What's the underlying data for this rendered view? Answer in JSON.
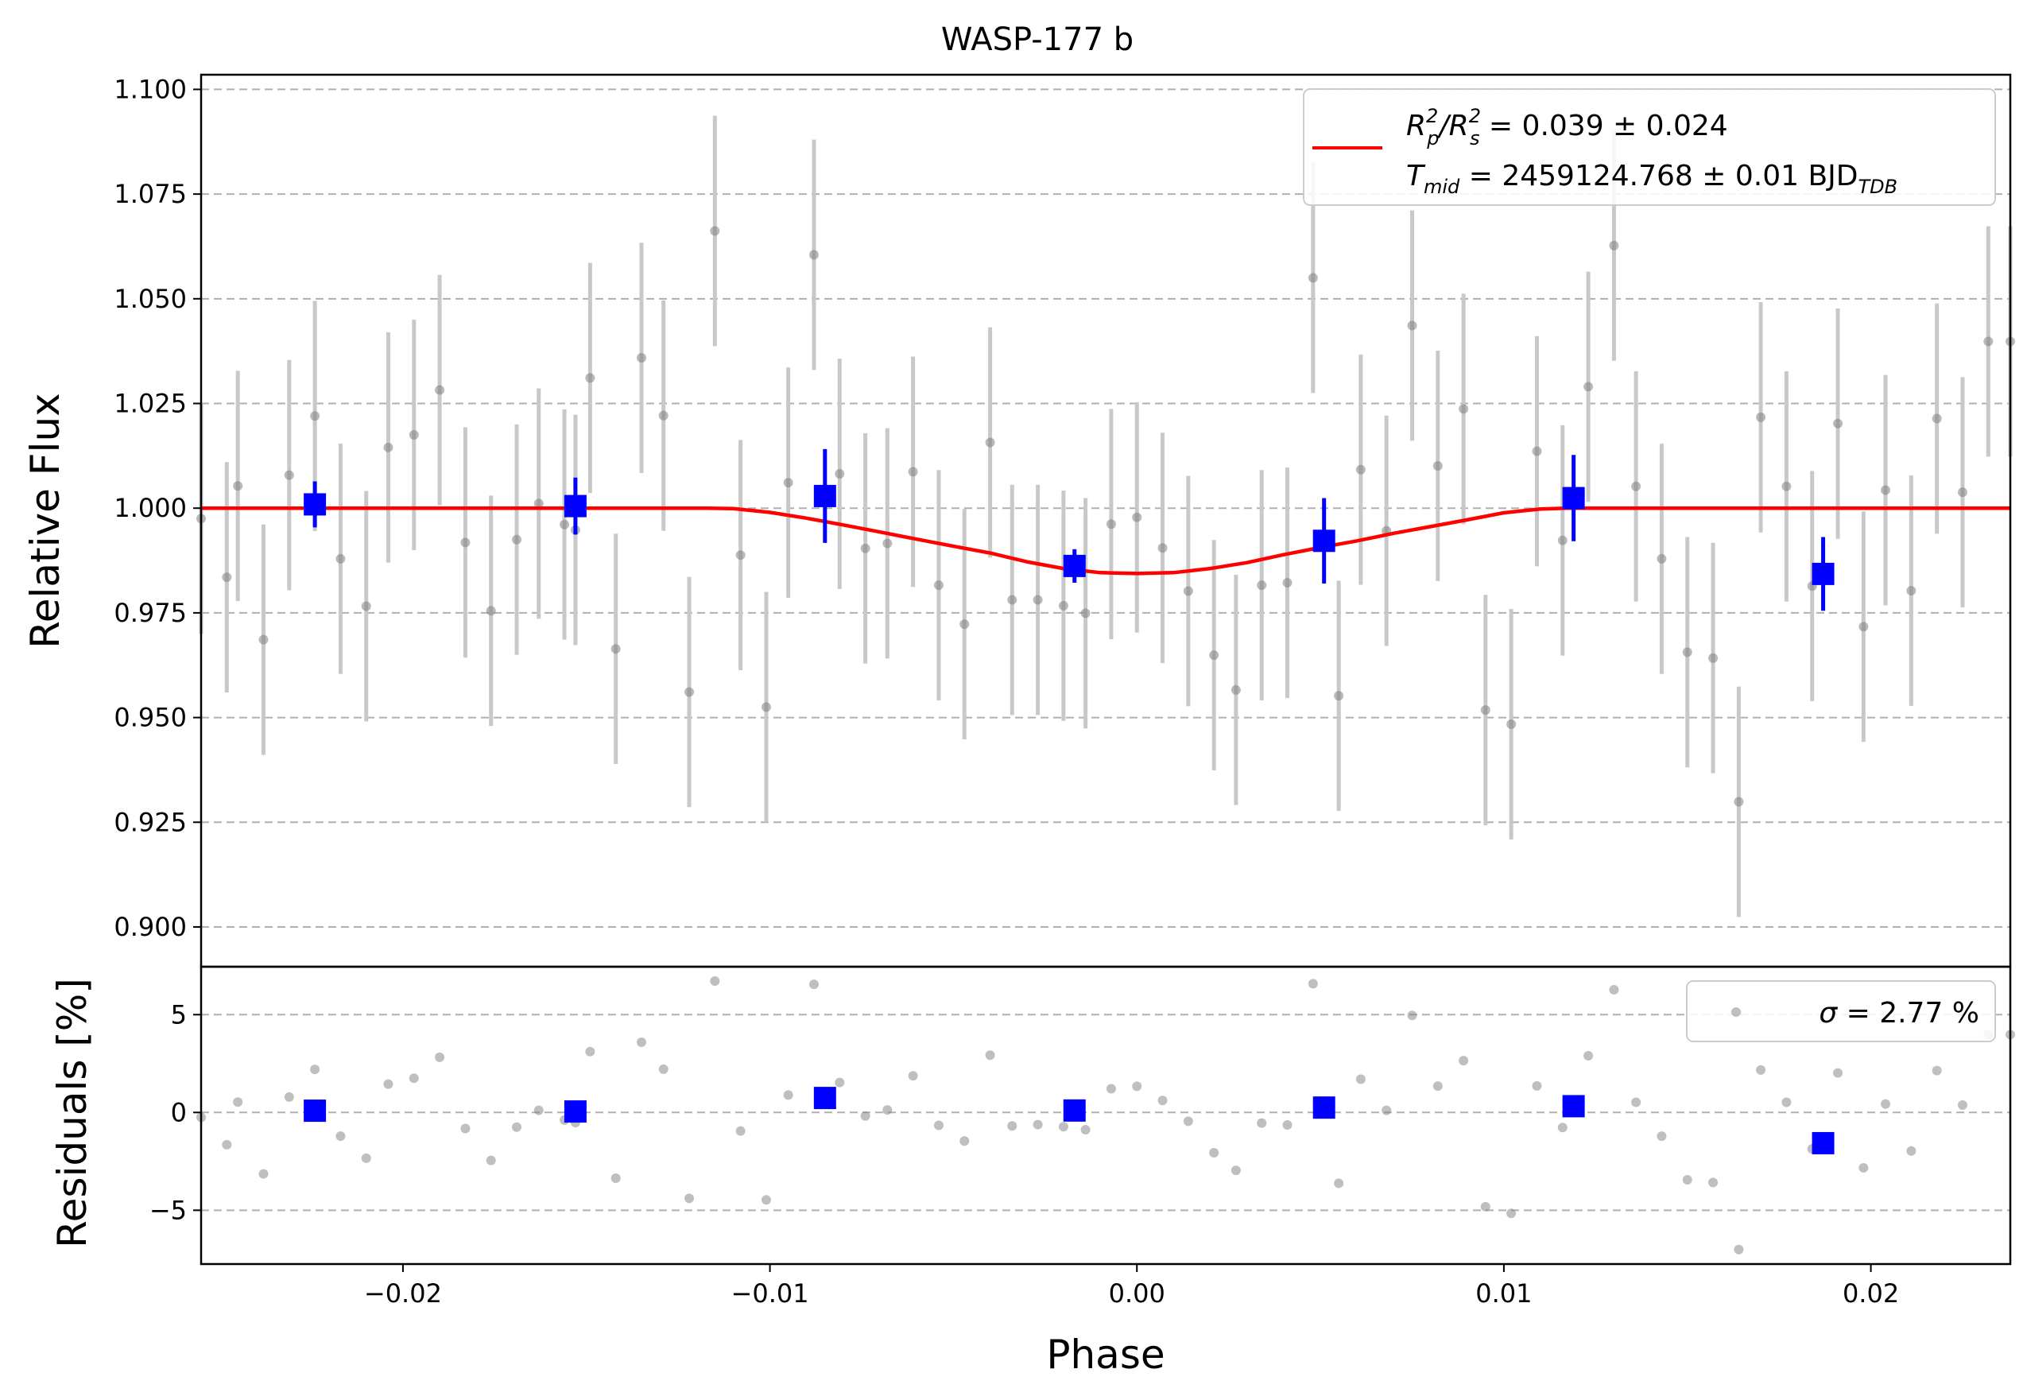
{
  "chart_data": [
    {
      "type": "scatter",
      "title": "WASP-177 b",
      "ylabel": "Relative Flux",
      "xlim": [
        -0.0255,
        0.0238
      ],
      "ylim": [
        0.8905,
        1.1035
      ],
      "yticks": [
        0.9,
        0.925,
        0.95,
        0.975,
        1.0,
        1.025,
        1.05,
        1.075,
        1.1
      ],
      "ytick_labels": [
        "0.900",
        "0.925",
        "0.950",
        "0.975",
        "1.000",
        "1.025",
        "1.050",
        "1.075",
        "1.100"
      ],
      "grid": "horizontal dashed",
      "legend_position": "top-right",
      "legend": {
        "line_label_parts": {
          "r1": "R",
          "r1_sup": "2",
          "r1_sub": "p",
          "slash": "/R",
          "r2_sup": "2",
          "r2_sub": "s",
          "value": " = 0.039 ± 0.024"
        },
        "tmid_label_parts": {
          "t": "T",
          "t_sub": "mid",
          "value": " = 2459124.768 ± 0.01 BJD",
          "unit_sub": "TDB"
        }
      },
      "colors": {
        "model": "#ff0000",
        "binned": "#0000ff",
        "raw": "#808080",
        "raw_err": "#c8c8c8",
        "grid": "#b0b0b0"
      },
      "series": [
        {
          "name": "raw",
          "x": [
            -0.0255,
            -0.0248,
            -0.0245,
            -0.0238,
            -0.0231,
            -0.0224,
            -0.0217,
            -0.021,
            -0.0204,
            -0.0197,
            -0.019,
            -0.0183,
            -0.0176,
            -0.0169,
            -0.0163,
            -0.0156,
            -0.0153,
            -0.0149,
            -0.0142,
            -0.0135,
            -0.0129,
            -0.0122,
            -0.0115,
            -0.0108,
            -0.0101,
            -0.0095,
            -0.0088,
            -0.0081,
            -0.0074,
            -0.0068,
            -0.0061,
            -0.0054,
            -0.0047,
            -0.004,
            -0.0034,
            -0.0027,
            -0.002,
            -0.0014,
            -0.0007,
            0.0,
            0.0007,
            0.0014,
            0.0021,
            0.0027,
            0.0034,
            0.0041,
            0.0048,
            0.0055,
            0.0061,
            0.0068,
            0.0075,
            0.0082,
            0.0089,
            0.0095,
            0.0102,
            0.0109,
            0.0116,
            0.0123,
            0.013,
            0.0136,
            0.0143,
            0.015,
            0.0157,
            0.0164,
            0.017,
            0.0177,
            0.0184,
            0.0191,
            0.0198,
            0.0204,
            0.0211,
            0.0218,
            0.0225,
            0.0232,
            0.0238
          ],
          "y": [
            0.9975,
            0.9835,
            1.0053,
            0.9686,
            1.0079,
            1.022,
            0.9879,
            0.9766,
            1.0145,
            1.0175,
            1.0282,
            0.9918,
            0.9755,
            0.9925,
            1.0011,
            0.9961,
            0.9948,
            1.0311,
            0.9664,
            1.0359,
            1.0221,
            0.9561,
            1.0662,
            0.9888,
            0.9525,
            1.0061,
            1.0605,
            1.0082,
            0.9904,
            0.9916,
            1.0087,
            0.9816,
            0.9723,
            1.0157,
            0.9781,
            0.9781,
            0.9767,
            0.9749,
            0.9962,
            0.9978,
            0.9905,
            0.9802,
            0.9649,
            0.9566,
            0.9816,
            0.9822,
            1.055,
            0.9552,
            1.0092,
            0.9946,
            1.0436,
            1.0101,
            1.0237,
            0.9518,
            0.9484,
            1.0136,
            0.9923,
            1.029,
            1.0627,
            1.0052,
            0.9879,
            0.9656,
            0.9642,
            0.9299,
            1.0217,
            1.0052,
            0.9814,
            1.0202,
            0.9717,
            1.0043,
            0.9803,
            1.0214,
            1.0038,
            1.0398,
            1.0398
          ],
          "err": [
            0.0275,
            0.0275,
            0.0275,
            0.0275,
            0.0275,
            0.0275,
            0.0275,
            0.0275,
            0.0275,
            0.0275,
            0.0275,
            0.0275,
            0.0275,
            0.0275,
            0.0275,
            0.0275,
            0.0275,
            0.0275,
            0.0275,
            0.0275,
            0.0275,
            0.0275,
            0.0275,
            0.0275,
            0.0275,
            0.0275,
            0.0275,
            0.0275,
            0.0275,
            0.0275,
            0.0275,
            0.0275,
            0.0275,
            0.0275,
            0.0275,
            0.0275,
            0.0275,
            0.0275,
            0.0275,
            0.0275,
            0.0275,
            0.0275,
            0.0275,
            0.0275,
            0.0275,
            0.0275,
            0.0275,
            0.0275,
            0.0275,
            0.0275,
            0.0275,
            0.0275,
            0.0275,
            0.0275,
            0.0275,
            0.0275,
            0.0275,
            0.0275,
            0.0275,
            0.0275,
            0.0275,
            0.0275,
            0.0275,
            0.0275,
            0.0275,
            0.0275,
            0.0275,
            0.0275,
            0.0275,
            0.0275,
            0.0275,
            0.0275,
            0.0275,
            0.0275,
            0.0275
          ]
        },
        {
          "name": "binned",
          "x": [
            -0.0224,
            -0.0153,
            -0.0085,
            -0.0017,
            0.0051,
            0.0119,
            0.0187
          ],
          "y": [
            1.0009,
            1.0005,
            1.0029,
            0.9862,
            0.9922,
            1.0024,
            0.9843
          ],
          "err": [
            0.0055,
            0.0068,
            0.0112,
            0.004,
            0.0102,
            0.0103,
            0.0088
          ]
        },
        {
          "name": "model",
          "x": [
            -0.0255,
            -0.0117,
            -0.011,
            -0.01,
            -0.009,
            -0.008,
            -0.007,
            -0.006,
            -0.005,
            -0.004,
            -0.003,
            -0.002,
            -0.001,
            0.0,
            0.001,
            0.002,
            0.003,
            0.004,
            0.005,
            0.006,
            0.007,
            0.008,
            0.009,
            0.01,
            0.011,
            0.0117,
            0.0238
          ],
          "y": [
            1.0,
            1.0,
            0.9999,
            0.999,
            0.9976,
            0.996,
            0.9943,
            0.9926,
            0.9909,
            0.9893,
            0.9872,
            0.9856,
            0.9846,
            0.9844,
            0.9846,
            0.9856,
            0.987,
            0.9889,
            0.9906,
            0.9922,
            0.994,
            0.9956,
            0.9972,
            0.9989,
            0.9998,
            1.0,
            1.0
          ]
        }
      ]
    },
    {
      "type": "scatter",
      "xlabel": "Phase",
      "ylabel": "Residuals [%]",
      "xlim": [
        -0.0255,
        0.0238
      ],
      "ylim": [
        -7.75,
        7.45
      ],
      "yticks": [
        -5,
        0,
        5
      ],
      "ytick_labels": [
        "−5",
        "0",
        "5"
      ],
      "xticks": [
        -0.02,
        -0.01,
        0.0,
        0.01,
        0.02
      ],
      "xtick_labels": [
        "−0.02",
        "−0.01",
        "0.00",
        "0.01",
        "0.02"
      ],
      "grid": "horizontal dashed",
      "legend_position": "top-right",
      "legend": {
        "sigma_symbol": "σ",
        "sigma_value": " = 2.77 %"
      },
      "series": [
        {
          "name": "raw_residuals",
          "y": [
            -0.25,
            -1.65,
            0.53,
            -3.14,
            0.79,
            2.2,
            -1.21,
            -2.34,
            1.45,
            1.75,
            2.82,
            -0.82,
            -2.45,
            -0.75,
            0.11,
            -0.39,
            -0.52,
            3.11,
            -3.36,
            3.59,
            2.21,
            -4.39,
            6.72,
            -0.95,
            -4.47,
            0.89,
            6.55,
            1.53,
            -0.18,
            0.13,
            1.87,
            -0.66,
            -1.46,
            2.93,
            -0.69,
            -0.62,
            -0.73,
            -0.88,
            1.21,
            1.34,
            0.61,
            -0.45,
            -2.06,
            -2.96,
            -0.54,
            -0.64,
            6.58,
            -3.62,
            1.7,
            0.11,
            4.96,
            1.35,
            2.65,
            -4.82,
            -5.16,
            1.36,
            -0.77,
            2.9,
            6.27,
            0.52,
            -1.21,
            -3.44,
            -3.58,
            -7.01,
            2.17,
            0.52,
            -1.86,
            2.02,
            -2.83,
            0.43,
            -1.97,
            2.14,
            0.38,
            3.98,
            3.98
          ]
        },
        {
          "name": "binned_residuals",
          "x": [
            -0.0224,
            -0.0153,
            -0.0085,
            -0.0017,
            0.0051,
            0.0119,
            0.0187
          ],
          "y": [
            0.09,
            0.05,
            0.74,
            0.1,
            0.25,
            0.32,
            -1.57
          ]
        }
      ]
    }
  ]
}
